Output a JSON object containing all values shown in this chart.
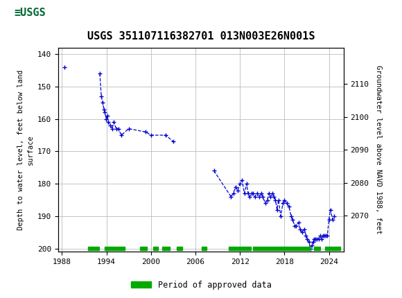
{
  "title": "USGS 351107116382701 013N003E26N001S",
  "ylabel_left": "Depth to water level, feet below land\nsurface",
  "ylabel_right": "Groundwater level above NAVD 1988, feet",
  "header_bg": "#006633",
  "ylim_left": [
    201,
    138
  ],
  "ylim_right": [
    2059,
    2121
  ],
  "xlim": [
    1987.5,
    2026
  ],
  "yticks_left": [
    140,
    150,
    160,
    170,
    180,
    190,
    200
  ],
  "yticks_right": [
    2070,
    2080,
    2090,
    2100,
    2110
  ],
  "xticks": [
    1988,
    1994,
    2000,
    2006,
    2012,
    2018,
    2024
  ],
  "grid_color": "#bbbbbb",
  "plot_line_color": "#0000cc",
  "approved_bar_color": "#00aa00",
  "legend_label": "Period of approved data",
  "data_points": [
    [
      1988.3,
      144
    ],
    [
      1993.1,
      146
    ],
    [
      1993.3,
      153
    ],
    [
      1993.5,
      155
    ],
    [
      1993.65,
      157
    ],
    [
      1993.8,
      158
    ],
    [
      1993.95,
      160
    ],
    [
      1994.1,
      159
    ],
    [
      1994.25,
      161
    ],
    [
      1994.5,
      162
    ],
    [
      1994.75,
      163
    ],
    [
      1995.0,
      161
    ],
    [
      1995.3,
      163
    ],
    [
      1995.6,
      163
    ],
    [
      1996.0,
      165
    ],
    [
      1997.0,
      163
    ],
    [
      1999.3,
      164
    ],
    [
      2000.0,
      165
    ],
    [
      2002.0,
      165
    ],
    [
      2003.0,
      167
    ],
    [
      2008.5,
      176
    ],
    [
      2010.8,
      184
    ],
    [
      2011.1,
      183
    ],
    [
      2011.4,
      181
    ],
    [
      2011.7,
      182
    ],
    [
      2012.0,
      180
    ],
    [
      2012.3,
      179
    ],
    [
      2012.6,
      183
    ],
    [
      2012.9,
      180
    ],
    [
      2013.1,
      183
    ],
    [
      2013.3,
      184
    ],
    [
      2013.6,
      183
    ],
    [
      2013.8,
      183
    ],
    [
      2014.0,
      184
    ],
    [
      2014.3,
      183
    ],
    [
      2014.6,
      184
    ],
    [
      2014.9,
      183
    ],
    [
      2015.1,
      184
    ],
    [
      2015.4,
      186
    ],
    [
      2015.7,
      185
    ],
    [
      2015.9,
      183
    ],
    [
      2016.1,
      184
    ],
    [
      2016.4,
      183
    ],
    [
      2016.6,
      184
    ],
    [
      2016.8,
      185
    ],
    [
      2017.0,
      188
    ],
    [
      2017.2,
      185
    ],
    [
      2017.5,
      190
    ],
    [
      2017.8,
      186
    ],
    [
      2018.0,
      185
    ],
    [
      2018.3,
      186
    ],
    [
      2018.6,
      187
    ],
    [
      2018.9,
      190
    ],
    [
      2019.1,
      191
    ],
    [
      2019.4,
      193
    ],
    [
      2019.6,
      193
    ],
    [
      2019.9,
      192
    ],
    [
      2020.1,
      194
    ],
    [
      2020.4,
      195
    ],
    [
      2020.7,
      194
    ],
    [
      2020.9,
      196
    ],
    [
      2021.1,
      197
    ],
    [
      2021.3,
      198
    ],
    [
      2021.5,
      200
    ],
    [
      2021.7,
      199
    ],
    [
      2021.85,
      198
    ],
    [
      2022.0,
      197
    ],
    [
      2022.2,
      197
    ],
    [
      2022.4,
      197
    ],
    [
      2022.6,
      197
    ],
    [
      2022.8,
      196
    ],
    [
      2023.0,
      197
    ],
    [
      2023.2,
      196
    ],
    [
      2023.4,
      196
    ],
    [
      2023.6,
      196
    ],
    [
      2023.8,
      196
    ],
    [
      2024.0,
      191
    ],
    [
      2024.2,
      188
    ],
    [
      2024.5,
      191
    ],
    [
      2024.7,
      190
    ]
  ],
  "approved_periods": [
    [
      1991.5,
      1993.0
    ],
    [
      1993.8,
      1996.5
    ],
    [
      1998.5,
      1999.5
    ],
    [
      2000.3,
      2001.0
    ],
    [
      2001.5,
      2002.5
    ],
    [
      2003.5,
      2004.2
    ],
    [
      2006.8,
      2007.5
    ],
    [
      2010.5,
      2013.5
    ],
    [
      2013.8,
      2021.5
    ],
    [
      2022.0,
      2022.8
    ],
    [
      2023.5,
      2025.5
    ]
  ]
}
